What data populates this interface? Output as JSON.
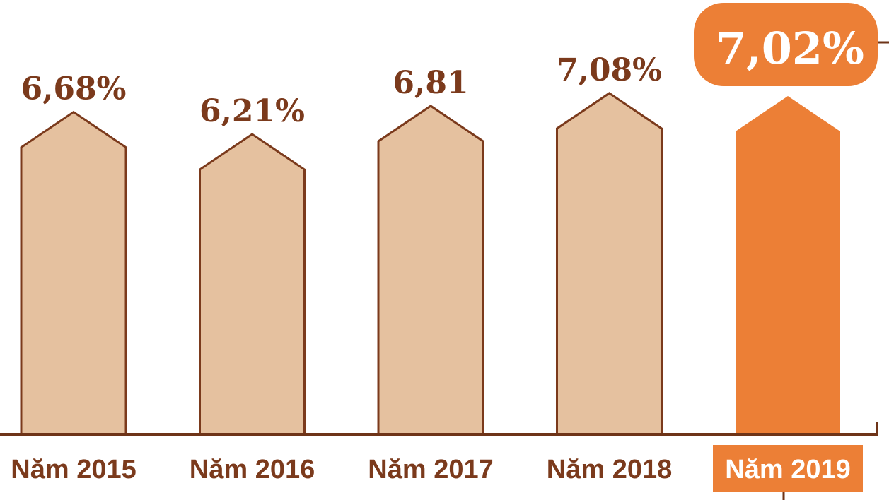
{
  "chart_data": {
    "type": "bar",
    "categories": [
      "Năm 2015",
      "Năm 2016",
      "Năm 2017",
      "Năm 2018",
      "Năm 2019"
    ],
    "values": [
      6.68,
      6.21,
      6.81,
      7.08,
      7.02
    ],
    "value_labels": [
      "6,68%",
      "6,21%",
      "6,81",
      "7,08%",
      "7,02%"
    ],
    "highlight_index": 4,
    "title": "",
    "xlabel": "",
    "ylabel": "",
    "grid": false,
    "colors": {
      "bar_fill": "#e5c19f",
      "bar_stroke": "#7b3a1c",
      "highlight": "#ec7f36",
      "label_text": "#7b3a1c",
      "highlight_text": "#ffffff",
      "axis": "#6e3418"
    }
  }
}
